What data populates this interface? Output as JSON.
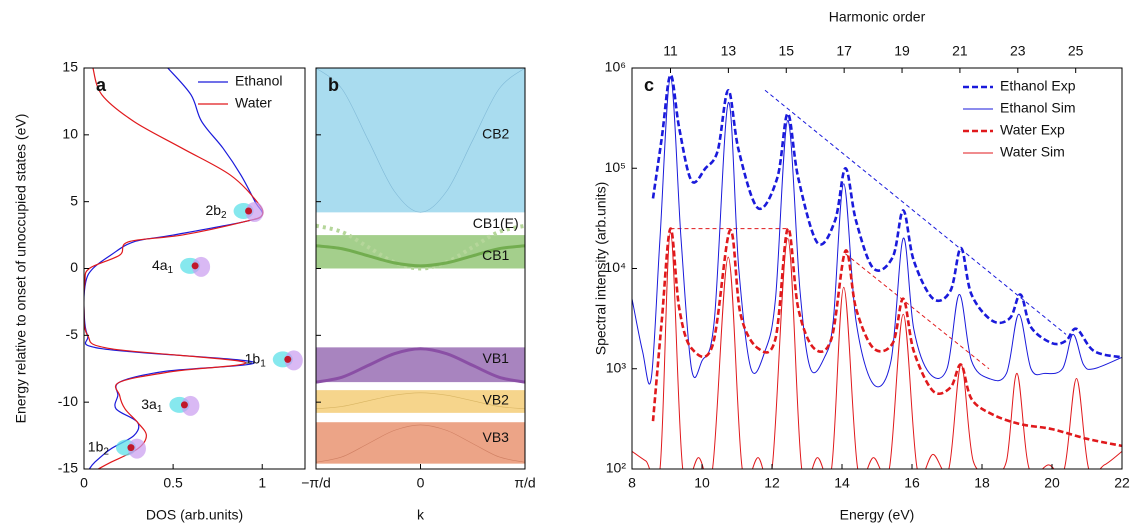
{
  "chart_data": [
    {
      "type": "line",
      "panel_label": "a",
      "x_label": "DOS (arb.units)",
      "y_label": "Energy relative to onset of unoccupied states (eV)",
      "xlim": [
        0,
        1.24
      ],
      "xticks": [
        0,
        0.5,
        1
      ],
      "ylim": [
        -15,
        15
      ],
      "yticks": [
        -15,
        -10,
        -5,
        0,
        5,
        10,
        15
      ],
      "y": [
        15,
        13,
        11,
        9,
        7,
        5,
        4,
        3.5,
        2.5,
        2,
        1,
        0,
        -1,
        -3,
        -5,
        -6,
        -7,
        -7.7,
        -8.5,
        -9.5,
        -10.5,
        -11.5,
        -12.5,
        -13.5,
        -14.5,
        -15
      ],
      "legend": "upper right",
      "series": [
        {
          "name": "Ethanol",
          "color": "#1a1adb",
          "values": [
            0.47,
            0.6,
            0.66,
            0.78,
            0.88,
            0.96,
            1.0,
            0.9,
            0.5,
            0.28,
            0.15,
            0.05,
            0.01,
            0.0,
            0.02,
            0.1,
            0.95,
            0.45,
            0.2,
            0.19,
            0.18,
            0.3,
            0.28,
            0.15,
            0.06,
            0.03
          ]
        },
        {
          "name": "Water",
          "color": "#e0191c",
          "values": [
            0.05,
            0.1,
            0.28,
            0.55,
            0.82,
            0.97,
            1.0,
            0.9,
            0.55,
            0.25,
            0.2,
            0.03,
            0.005,
            0.0,
            0.02,
            0.15,
            0.9,
            0.5,
            0.2,
            0.2,
            0.23,
            0.3,
            0.35,
            0.3,
            0.15,
            0.08
          ]
        }
      ],
      "annotations": [
        {
          "text": "2b",
          "sub": "2",
          "x": 0.8,
          "y": 4.3
        },
        {
          "text": "4a",
          "sub": "1",
          "x": 0.5,
          "y": 0.2
        },
        {
          "text": "1b",
          "sub": "1",
          "x": 1.02,
          "y": -6.8
        },
        {
          "text": "3a",
          "sub": "1",
          "x": 0.44,
          "y": -10.2
        },
        {
          "text": "1b",
          "sub": "2",
          "x": 0.14,
          "y": -13.4
        }
      ]
    },
    {
      "type": "bands",
      "panel_label": "b",
      "x_label": "k",
      "xlim": [
        -1,
        1
      ],
      "xticks": [
        {
          "value": -1,
          "label": "−π/d"
        },
        0,
        {
          "value": 1,
          "label": "π/d"
        }
      ],
      "ylim": [
        -15,
        15
      ],
      "yticks": [
        -15,
        -10,
        -5,
        0,
        5,
        10,
        15
      ],
      "k": [
        -1,
        -0.75,
        -0.5,
        -0.25,
        0,
        0.25,
        0.5,
        0.75,
        1
      ],
      "bands": [
        {
          "name": "CB2",
          "color": "#a9dcef",
          "range": [
            4.2,
            15
          ],
          "label_at": [
            0.72,
            10
          ],
          "curve": {
            "color": "#7fb8d6",
            "width": 0.6,
            "values": [
              15,
              13.42,
              9.6,
              5.78,
              4.2,
              5.78,
              9.6,
              13.42,
              15
            ]
          }
        },
        {
          "name": "CB1(E)",
          "label_at": [
            0.72,
            3.3
          ],
          "curve": {
            "color": "#b5d69a",
            "width": 4,
            "dotted": true,
            "values": [
              3.2,
              2.73,
              1.6,
              0.47,
              0,
              0.47,
              1.6,
              2.73,
              3.2
            ]
          }
        },
        {
          "name": "CB1",
          "color": "#a4cf8c",
          "range": [
            0,
            2.5
          ],
          "label_at": [
            0.72,
            0.9
          ],
          "curve": {
            "color": "#72ad4f",
            "width": 3,
            "values": [
              1.7,
              1.48,
              0.95,
              0.42,
              0.2,
              0.42,
              0.95,
              1.48,
              1.7
            ]
          }
        },
        {
          "name": "VB1",
          "color": "#a884bf",
          "range": [
            -8.5,
            -5.9
          ],
          "label_at": [
            0.72,
            -6.8
          ],
          "curve": {
            "color": "#8a4fa5",
            "width": 3,
            "values": [
              -8.5,
              -8.13,
              -7.25,
              -6.37,
              -6,
              -6.37,
              -7.25,
              -8.13,
              -8.5
            ]
          }
        },
        {
          "name": "VB2",
          "color": "#f6d58c",
          "range": [
            -10.8,
            -9.1
          ],
          "label_at": [
            0.72,
            -9.9
          ],
          "curve": {
            "color": "#d9b563",
            "width": 0.6,
            "values": [
              -10.5,
              -10.32,
              -9.9,
              -9.48,
              -9.3,
              -9.48,
              -9.9,
              -10.32,
              -10.5
            ]
          }
        },
        {
          "name": "VB3",
          "color": "#eca487",
          "range": [
            -14.6,
            -11.5
          ],
          "label_at": [
            0.72,
            -12.7
          ],
          "curve": {
            "color": "#cf7f62",
            "width": 0.6,
            "values": [
              -14.5,
              -14.09,
              -13.1,
              -12.11,
              -11.7,
              -12.11,
              -13.1,
              -14.09,
              -14.5
            ]
          }
        }
      ]
    },
    {
      "type": "line",
      "panel_label": "c",
      "x_label": "Energy (eV)",
      "y_label": "Spectral intensity (arb.units)",
      "x2_label": "Harmonic order",
      "xlim": [
        8,
        22
      ],
      "xticks": [
        8,
        10,
        12,
        14,
        16,
        18,
        20,
        22
      ],
      "x2lim": [
        9.67,
        26.6
      ],
      "x2ticks": [
        11,
        13,
        15,
        17,
        19,
        21,
        23,
        25
      ],
      "ylim": [
        100,
        1000000
      ],
      "log_y": true,
      "yticks": [
        {
          "value": 100,
          "label": "10²"
        },
        {
          "value": 1000,
          "label": "10³"
        },
        {
          "value": 10000,
          "label": "10⁴"
        },
        {
          "value": 100000,
          "label": "10⁵"
        },
        {
          "value": 1000000,
          "label": "10⁶"
        }
      ],
      "legend": "upper right",
      "series": [
        {
          "name": "Ethanol Exp",
          "color": "#1a1adb",
          "dashed": true,
          "width": 2.6,
          "x": [
            8.6,
            8.85,
            9.1,
            9.35,
            9.7,
            10.1,
            10.45,
            10.75,
            11.05,
            11.6,
            12.15,
            12.45,
            12.75,
            13.3,
            13.8,
            14.1,
            14.4,
            14.9,
            15.45,
            15.75,
            16.05,
            16.6,
            17.1,
            17.4,
            17.7,
            18.3,
            18.8,
            19.1,
            19.4,
            20.0,
            20.4,
            20.7,
            21.2,
            22.0
          ],
          "values": [
            50000,
            200000,
            850000,
            250000,
            75000,
            100000,
            150000,
            600000,
            150000,
            40000,
            80000,
            350000,
            80000,
            18000,
            30000,
            100000,
            30000,
            10000,
            13000,
            38000,
            12000,
            5000,
            6000,
            16000,
            5500,
            3000,
            3200,
            5500,
            2600,
            1800,
            1900,
            2500,
            1500,
            1300
          ]
        },
        {
          "name": "Ethanol Sim",
          "color": "#1a1adb",
          "width": 1,
          "x": [
            8.0,
            8.3,
            8.55,
            8.8,
            9.1,
            9.4,
            9.7,
            10.0,
            10.35,
            10.75,
            11.05,
            11.4,
            11.8,
            12.1,
            12.45,
            12.8,
            13.1,
            13.5,
            13.75,
            14.05,
            14.4,
            14.9,
            15.4,
            15.75,
            16.05,
            16.5,
            17.0,
            17.35,
            17.7,
            18.2,
            18.7,
            19.05,
            19.4,
            19.8,
            20.3,
            20.6,
            20.9,
            21.2,
            22.0
          ],
          "values": [
            5000,
            1500,
            800,
            20000,
            800000,
            20000,
            1000,
            1200,
            3000,
            450000,
            10000,
            1000,
            1500,
            5000,
            300000,
            6000,
            1000,
            1300,
            3000,
            70000,
            3000,
            700,
            1200,
            20000,
            2500,
            900,
            1000,
            5500,
            1200,
            800,
            900,
            3500,
            1000,
            900,
            1000,
            2200,
            1100,
            1000,
            1300
          ]
        },
        {
          "name": "Water Exp",
          "color": "#e0191c",
          "dashed": true,
          "width": 2.6,
          "x": [
            8.6,
            8.85,
            9.1,
            9.35,
            9.7,
            10.3,
            10.8,
            11.1,
            11.6,
            12.1,
            12.45,
            12.75,
            13.2,
            13.7,
            14.1,
            14.4,
            14.9,
            15.45,
            15.75,
            16.05,
            16.6,
            17.1,
            17.4,
            17.7,
            18.3,
            19.1,
            20.0,
            21.0,
            22.0
          ],
          "values": [
            300,
            3000,
            25000,
            4000,
            1600,
            1700,
            24000,
            3500,
            1600,
            2000,
            25000,
            4000,
            1600,
            2000,
            15000,
            4000,
            1600,
            1800,
            5000,
            1500,
            600,
            650,
            1100,
            500,
            350,
            280,
            250,
            200,
            170
          ]
        },
        {
          "name": "Water Sim",
          "color": "#e0191c",
          "width": 1,
          "x": [
            8.0,
            8.4,
            8.8,
            9.1,
            9.45,
            9.9,
            10.3,
            10.75,
            11.15,
            11.6,
            12.0,
            12.45,
            12.85,
            13.3,
            13.7,
            14.05,
            14.45,
            14.9,
            15.35,
            15.75,
            16.15,
            16.6,
            17.05,
            17.4,
            17.75,
            18.3,
            18.7,
            19.0,
            19.35,
            19.9,
            20.35,
            20.7,
            21.05,
            21.5,
            22.0
          ],
          "values": [
            150,
            120,
            100,
            23000,
            100,
            130,
            100,
            13000,
            100,
            130,
            100,
            20000,
            100,
            130,
            100,
            6500,
            100,
            130,
            100,
            3500,
            100,
            140,
            100,
            1100,
            120,
            100,
            120,
            900,
            100,
            110,
            100,
            800,
            100,
            110,
            150
          ]
        }
      ],
      "guide_lines": [
        {
          "color": "#1a1adb",
          "x": [
            11.8,
            20.4
          ],
          "values": [
            600000,
            2200
          ]
        },
        {
          "color": "#e0191c",
          "x": [
            9.1,
            12.4
          ],
          "values": [
            25000,
            25000
          ]
        },
        {
          "color": "#e0191c",
          "x": [
            14.1,
            18.2
          ],
          "values": [
            14000,
            1000
          ]
        }
      ]
    }
  ]
}
